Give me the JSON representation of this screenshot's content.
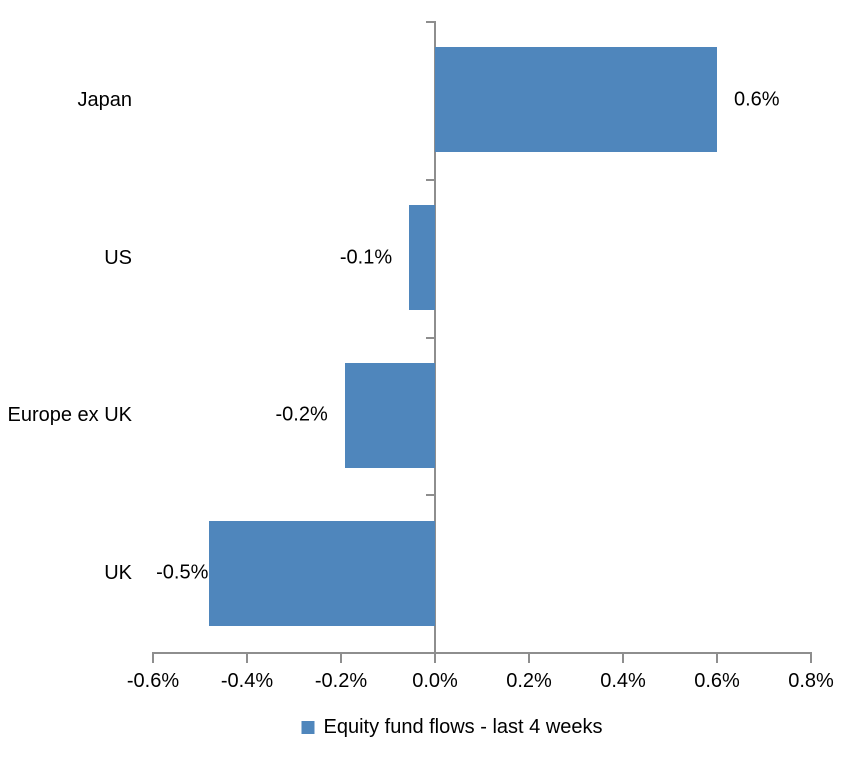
{
  "chart_data": {
    "type": "bar",
    "orientation": "horizontal",
    "title": "",
    "categories": [
      "Japan",
      "US",
      "Europe ex UK",
      "UK"
    ],
    "series": [
      {
        "name": "Equity fund flows - last 4 weeks",
        "values_pct": [
          0.6,
          -0.1,
          -0.2,
          -0.5
        ],
        "data_labels": [
          "0.6%",
          "-0.1%",
          "-0.2%",
          "-0.5%"
        ],
        "bar_lengths_pct": [
          0.6,
          -0.055,
          -0.192,
          -0.48
        ]
      }
    ],
    "x_axis": {
      "min_pct": -0.6,
      "max_pct": 0.8,
      "step_pct": 0.2,
      "tick_labels": [
        "-0.6%",
        "-0.4%",
        "-0.2%",
        "0.0%",
        "0.2%",
        "0.4%",
        "0.6%",
        "0.8%"
      ]
    },
    "legend": {
      "position": "bottom",
      "entries": [
        {
          "swatch_color": "#4F86BC",
          "label": "Equity fund flows - last 4 weeks"
        }
      ]
    },
    "colors": {
      "bar": "#4F86BC",
      "axis_line": "#8E8E8E",
      "text": "#000000",
      "background": "#FFFFFF"
    },
    "grid": "off"
  }
}
